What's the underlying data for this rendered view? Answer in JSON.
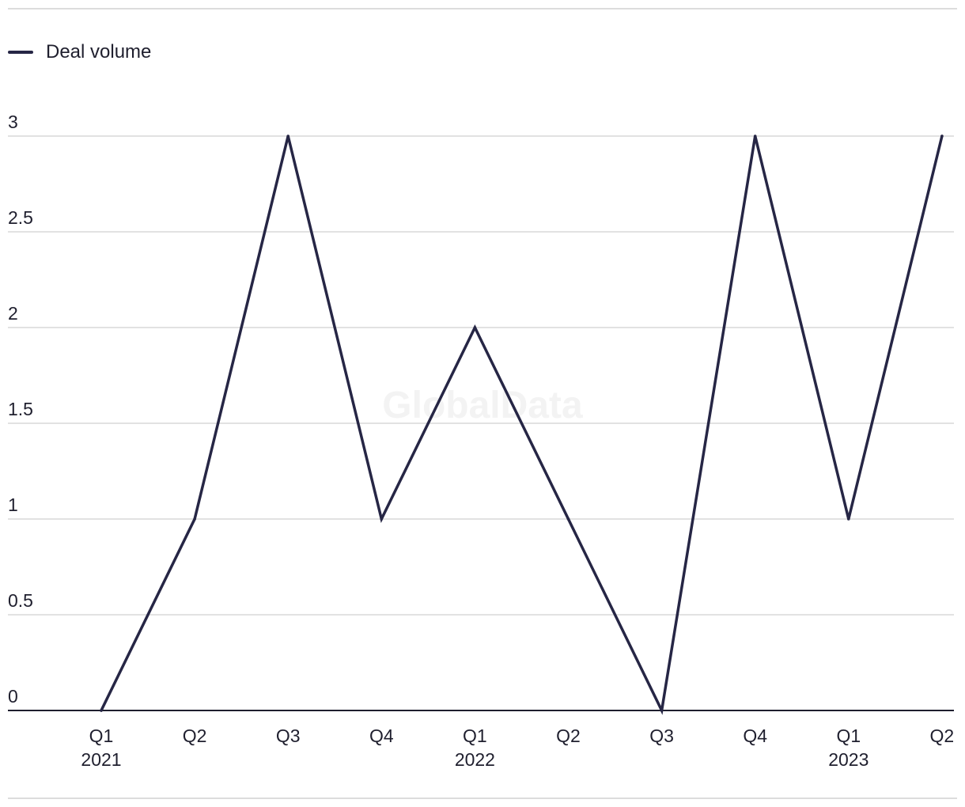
{
  "legend": {
    "series_label": "Deal volume"
  },
  "watermark": "GlobalData",
  "colors": {
    "line": "#262645",
    "grid": "#d9d9d9",
    "axis": "#1f1f2e"
  },
  "chart_data": {
    "type": "line",
    "categories": [
      "Q1",
      "Q2",
      "Q3",
      "Q4",
      "Q1",
      "Q2",
      "Q3",
      "Q4",
      "Q1",
      "Q2"
    ],
    "category_years": [
      "2021",
      "",
      "",
      "",
      "2022",
      "",
      "",
      "",
      "2023",
      ""
    ],
    "series": [
      {
        "name": "Deal volume",
        "values": [
          0,
          1,
          3,
          1,
          2,
          1,
          0,
          3,
          1,
          3
        ]
      }
    ],
    "yticks": [
      "0",
      "0.5",
      "1",
      "1.5",
      "2",
      "2.5",
      "3"
    ],
    "ylim": [
      0,
      3
    ],
    "grid": true,
    "legend": "top-left"
  }
}
